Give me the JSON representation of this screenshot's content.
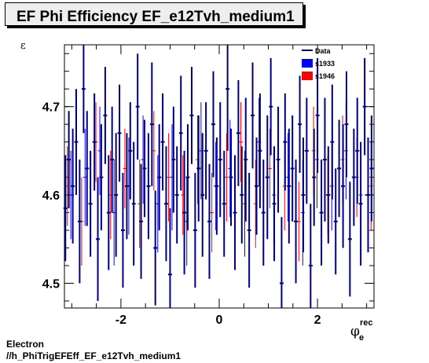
{
  "header": {
    "title": "EF Phi Efficiency EF_e12Tvh_medium1"
  },
  "footer": {
    "line1": "Electron",
    "line2": "//h_PhiTrigEFEff_EF_e12Tvh_medium1"
  },
  "chart_data": {
    "type": "scatter",
    "title": "EF Phi Efficiency EF_e12Tvh_medium1",
    "ylabel": "ε",
    "xlabel_main": "φ",
    "xlabel_sub": "e",
    "xlabel_sup": "rec",
    "xlim": [
      -3.15,
      3.15
    ],
    "ylim": [
      4.472,
      4.77
    ],
    "xticks": [
      -2,
      0,
      2
    ],
    "xtick_labels": [
      "-2",
      "0",
      "2"
    ],
    "yticks": [
      4.5,
      4.6,
      4.7
    ],
    "ytick_labels": [
      "4.5",
      "4.6",
      "4.7"
    ],
    "legend": {
      "placement": "top-right",
      "entries": [
        "Data",
        "s1933",
        "s1946"
      ]
    },
    "series": [
      {
        "name": "Data",
        "color": "#000080",
        "style": "errorbar",
        "x": [
          -3.13,
          -3.06,
          -2.98,
          -2.91,
          -2.84,
          -2.76,
          -2.69,
          -2.62,
          -2.54,
          -2.47,
          -2.4,
          -2.32,
          -2.25,
          -2.18,
          -2.1,
          -2.03,
          -1.96,
          -1.88,
          -1.81,
          -1.74,
          -1.66,
          -1.59,
          -1.52,
          -1.44,
          -1.37,
          -1.3,
          -1.22,
          -1.15,
          -1.08,
          -1.0,
          -0.93,
          -0.86,
          -0.78,
          -0.71,
          -0.64,
          -0.56,
          -0.49,
          -0.42,
          -0.34,
          -0.27,
          -0.2,
          -0.12,
          -0.05,
          0.02,
          0.1,
          0.17,
          0.24,
          0.32,
          0.39,
          0.46,
          0.54,
          0.61,
          0.68,
          0.76,
          0.83,
          0.9,
          0.98,
          1.05,
          1.12,
          1.2,
          1.27,
          1.34,
          1.42,
          1.49,
          1.56,
          1.64,
          1.71,
          1.78,
          1.86,
          1.93,
          2.0,
          2.08,
          2.15,
          2.22,
          2.3,
          2.37,
          2.44,
          2.52,
          2.59,
          2.66,
          2.74,
          2.81,
          2.88,
          2.96,
          3.03,
          3.1
        ],
        "y": [
          4.585,
          4.64,
          4.61,
          4.66,
          4.57,
          4.72,
          4.63,
          4.59,
          4.66,
          4.55,
          4.62,
          4.69,
          4.58,
          4.64,
          4.6,
          4.67,
          4.56,
          4.61,
          4.65,
          4.59,
          4.7,
          4.57,
          4.63,
          4.61,
          4.68,
          4.54,
          4.62,
          4.66,
          4.59,
          4.51,
          4.64,
          4.6,
          4.67,
          4.58,
          4.62,
          4.69,
          4.56,
          4.63,
          4.6,
          4.65,
          4.57,
          4.68,
          4.61,
          4.64,
          4.59,
          4.72,
          4.62,
          4.58,
          4.67,
          4.6,
          4.64,
          4.56,
          4.69,
          4.61,
          4.65,
          4.58,
          4.62,
          4.7,
          4.59,
          4.64,
          4.5,
          4.66,
          4.61,
          4.63,
          4.57,
          4.68,
          4.6,
          4.65,
          4.52,
          4.62,
          4.69,
          4.58,
          4.64,
          4.6,
          4.66,
          4.57,
          4.63,
          4.61,
          4.68,
          4.55,
          4.62,
          4.65,
          4.59,
          4.7,
          4.6,
          4.63
        ],
        "err": [
          0.06,
          0.055,
          0.065,
          0.06,
          0.07,
          0.05,
          0.065,
          0.06,
          0.055,
          0.07,
          0.06,
          0.055,
          0.065,
          0.06,
          0.07,
          0.055,
          0.065,
          0.06,
          0.055,
          0.07,
          0.06,
          0.065,
          0.055,
          0.06,
          0.07,
          0.065,
          0.06,
          0.055,
          0.065,
          0.075,
          0.06,
          0.055,
          0.065,
          0.07,
          0.06,
          0.055,
          0.065,
          0.06,
          0.07,
          0.055,
          0.065,
          0.06,
          0.055,
          0.065,
          0.06,
          0.07,
          0.055,
          0.065,
          0.06,
          0.055,
          0.07,
          0.065,
          0.06,
          0.055,
          0.065,
          0.06,
          0.07,
          0.055,
          0.065,
          0.06,
          0.075,
          0.055,
          0.065,
          0.06,
          0.07,
          0.055,
          0.065,
          0.06,
          0.07,
          0.055,
          0.065,
          0.06,
          0.07,
          0.055,
          0.065,
          0.06,
          0.055,
          0.07,
          0.06,
          0.065,
          0.055,
          0.06,
          0.07,
          0.055,
          0.065,
          0.06
        ]
      },
      {
        "name": "s1933",
        "color": "#0000ff",
        "style": "errorbar",
        "x": [
          -3.02,
          -2.73,
          -2.43,
          -2.14,
          -1.84,
          -1.55,
          -1.25,
          -0.96,
          -0.66,
          -0.37,
          -0.07,
          0.22,
          0.52,
          0.81,
          1.11,
          1.4,
          1.7,
          1.99,
          2.29,
          2.58,
          2.88
        ],
        "y": [
          4.6,
          4.62,
          4.65,
          4.58,
          4.61,
          4.64,
          4.59,
          4.62,
          4.57,
          4.65,
          4.61,
          4.63,
          4.59,
          4.66,
          4.6,
          4.62,
          4.58,
          4.64,
          4.61,
          4.65,
          4.6
        ],
        "err": [
          0.05,
          0.055,
          0.05,
          0.06,
          0.055,
          0.05,
          0.055,
          0.06,
          0.05,
          0.055,
          0.05,
          0.055,
          0.06,
          0.05,
          0.055,
          0.05,
          0.06,
          0.055,
          0.05,
          0.055,
          0.05
        ]
      },
      {
        "name": "s1946",
        "color": "#ff0000",
        "style": "errorbar",
        "x": [
          -3.09,
          -2.8,
          -2.51,
          -2.21,
          -1.92,
          -1.62,
          -1.33,
          -1.03,
          -0.74,
          -0.44,
          -0.15,
          0.15,
          0.44,
          0.74,
          1.03,
          1.33,
          1.62,
          1.92,
          2.21,
          2.51,
          2.8,
          3.09
        ],
        "y": [
          4.61,
          4.57,
          4.66,
          4.6,
          4.63,
          4.59,
          4.65,
          4.62,
          4.6,
          4.64,
          4.58,
          4.62,
          4.66,
          4.59,
          4.63,
          4.61,
          4.57,
          4.65,
          4.6,
          4.64,
          4.62,
          4.61
        ],
        "err": [
          0.045,
          0.05,
          0.045,
          0.05,
          0.045,
          0.05,
          0.045,
          0.05,
          0.045,
          0.05,
          0.045,
          0.05,
          0.045,
          0.05,
          0.045,
          0.05,
          0.045,
          0.05,
          0.045,
          0.05,
          0.045,
          0.05
        ]
      }
    ]
  }
}
